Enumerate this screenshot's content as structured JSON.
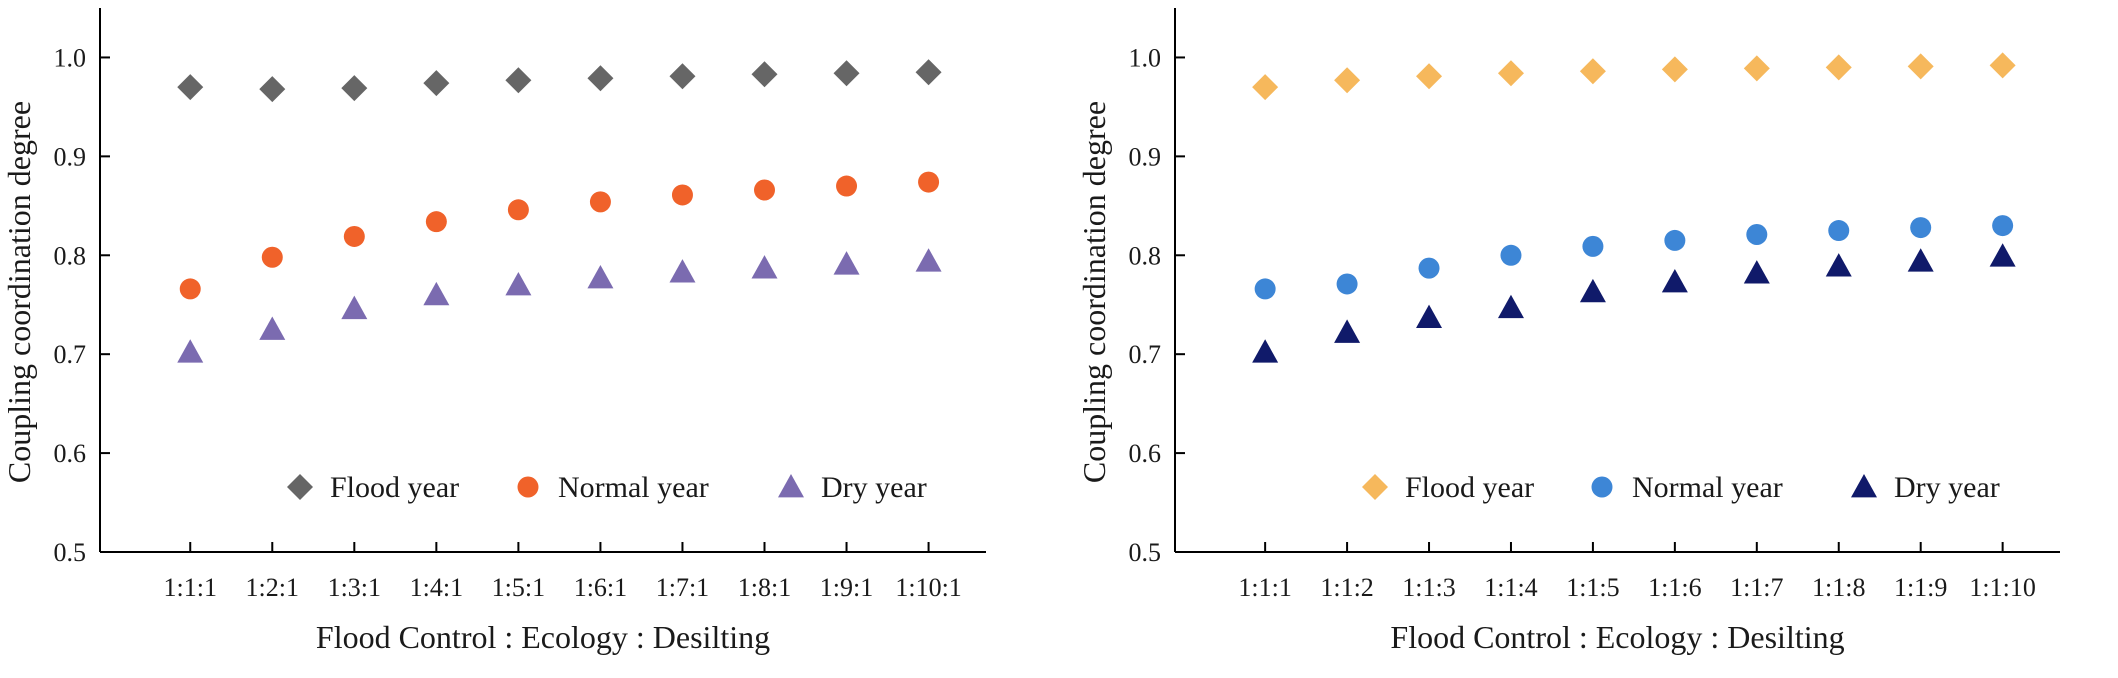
{
  "chart_data": [
    {
      "type": "scatter",
      "xlabel": "Flood Control : Ecology : Desilting",
      "ylabel": "Coupling coordination degree",
      "ylim": [
        0.5,
        1.05
      ],
      "yticks": [
        "0.5",
        "0.6",
        "0.7",
        "0.8",
        "0.9",
        "1.0"
      ],
      "categories": [
        "1:1:1",
        "1:2:1",
        "1:3:1",
        "1:4:1",
        "1:5:1",
        "1:6:1",
        "1:7:1",
        "1:8:1",
        "1:9:1",
        "1:10:1"
      ],
      "legend_position": "bottom",
      "series": [
        {
          "name": "Flood year",
          "marker": "diamond",
          "color": "#666666",
          "values": [
            0.97,
            0.968,
            0.969,
            0.974,
            0.977,
            0.979,
            0.981,
            0.983,
            0.984,
            0.985
          ]
        },
        {
          "name": "Normal year",
          "marker": "circle",
          "color": "#f0622a",
          "values": [
            0.766,
            0.798,
            0.819,
            0.834,
            0.846,
            0.854,
            0.861,
            0.866,
            0.87,
            0.874
          ]
        },
        {
          "name": "Dry year",
          "marker": "triangle",
          "color": "#7b6bb0",
          "values": [
            0.702,
            0.725,
            0.746,
            0.76,
            0.77,
            0.777,
            0.783,
            0.787,
            0.791,
            0.794
          ]
        }
      ]
    },
    {
      "type": "scatter",
      "xlabel": "Flood Control : Ecology : Desilting",
      "ylabel": "Coupling coordination degree",
      "ylim": [
        0.5,
        1.05
      ],
      "yticks": [
        "0.5",
        "0.6",
        "0.7",
        "0.8",
        "0.9",
        "1.0"
      ],
      "categories": [
        "1:1:1",
        "1:1:2",
        "1:1:3",
        "1:1:4",
        "1:1:5",
        "1:1:6",
        "1:1:7",
        "1:1:8",
        "1:1:9",
        "1:1:10"
      ],
      "legend_position": "bottom",
      "series": [
        {
          "name": "Flood year",
          "marker": "diamond",
          "color": "#f6b85c",
          "values": [
            0.97,
            0.977,
            0.981,
            0.984,
            0.986,
            0.988,
            0.989,
            0.99,
            0.991,
            0.992
          ]
        },
        {
          "name": "Normal year",
          "marker": "circle",
          "color": "#3d86d6",
          "values": [
            0.766,
            0.771,
            0.787,
            0.8,
            0.809,
            0.815,
            0.821,
            0.825,
            0.828,
            0.83
          ]
        },
        {
          "name": "Dry year",
          "marker": "triangle",
          "color": "#101a6a",
          "values": [
            0.702,
            0.722,
            0.737,
            0.747,
            0.763,
            0.773,
            0.782,
            0.789,
            0.794,
            0.799
          ]
        }
      ]
    }
  ]
}
